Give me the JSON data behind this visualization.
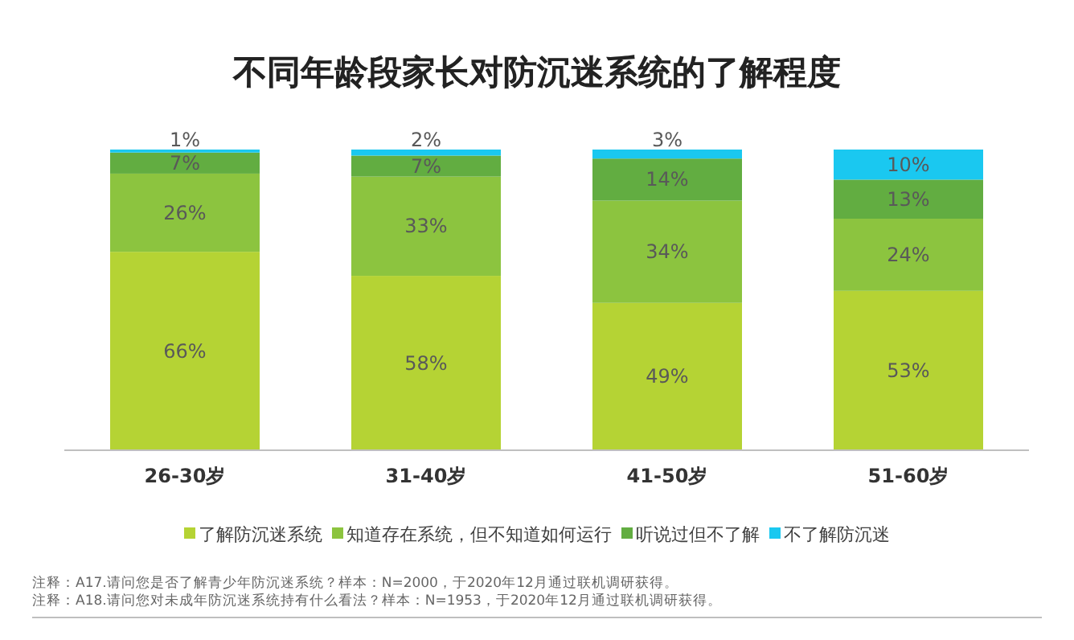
{
  "chart_data": {
    "type": "bar",
    "stacked": true,
    "title": "不同年龄段家长对防沉迷系统的了解程度",
    "categories": [
      "26-30岁",
      "31-40岁",
      "41-50岁",
      "51-60岁"
    ],
    "series": [
      {
        "name": "了解防沉迷系统",
        "color": "#b5d334",
        "values": [
          66,
          58,
          49,
          53
        ],
        "value_labels": [
          "66%",
          "58%",
          "49%",
          "53%"
        ]
      },
      {
        "name": "知道存在系统，但不知道如何运行",
        "color": "#8cc43f",
        "values": [
          26,
          33,
          34,
          24
        ],
        "value_labels": [
          "26%",
          "33%",
          "34%",
          "24%"
        ]
      },
      {
        "name": "听说过但不了解",
        "color": "#62ad41",
        "values": [
          7,
          7,
          14,
          13
        ],
        "value_labels": [
          "7%",
          "7%",
          "14%",
          "13%"
        ]
      },
      {
        "name": "不了解防沉迷",
        "color": "#1ac8f0",
        "values": [
          1,
          2,
          3,
          10
        ],
        "value_labels": [
          "1%",
          "2%",
          "3%",
          "10%"
        ]
      }
    ],
    "legend": "bottom",
    "grid": false,
    "annotations": [
      "注释：A17.请问您是否了解青少年防沉迷系统？样本：N=2000，于2020年12月通过联机调研获得。",
      "注释：A18.请问您对未成年防沉迷系统持有什么看法？样本：N=1953，于2020年12月通过联机调研获得。"
    ]
  }
}
